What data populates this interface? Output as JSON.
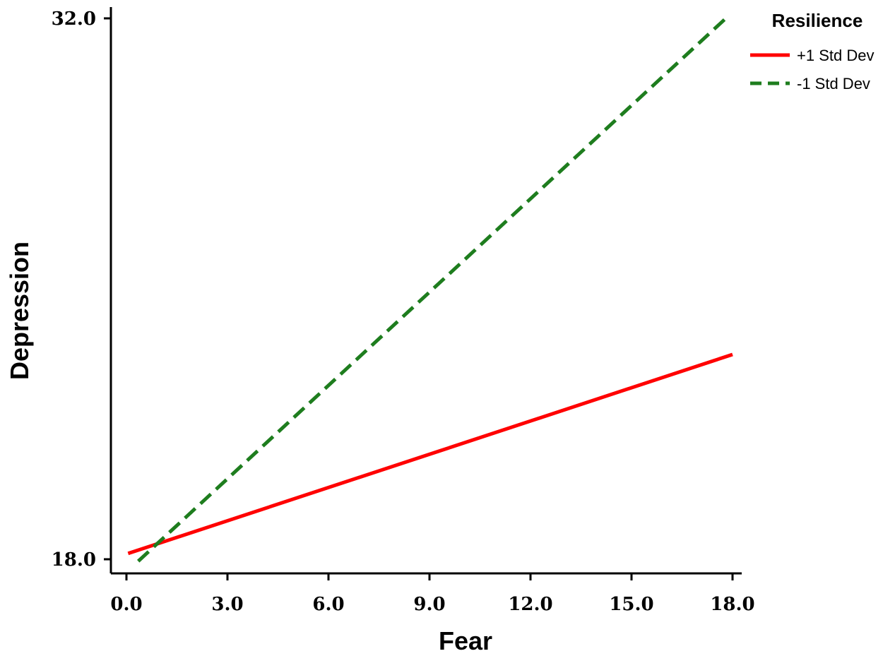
{
  "chart_data": {
    "type": "line",
    "xlabel": "Fear",
    "ylabel": "Depression",
    "xlim": [
      0,
      18
    ],
    "ylim": [
      18,
      32
    ],
    "x_ticks": [
      "0.0",
      "3.0",
      "6.0",
      "9.0",
      "12.0",
      "15.0",
      "18.0"
    ],
    "x_tick_values": [
      0,
      3,
      6,
      9,
      12,
      15,
      18
    ],
    "y_ticks": [
      "18.0",
      "32.0"
    ],
    "y_tick_values": [
      18,
      32
    ],
    "grid": false,
    "legend": {
      "title": "Resilience",
      "placement": "top-right"
    },
    "series": [
      {
        "name": "+1 Std Dev",
        "color": "#ff0000",
        "style": "solid",
        "x": [
          0.05,
          18.0
        ],
        "y": [
          18.15,
          23.3
        ]
      },
      {
        "name": "-1 Std Dev",
        "color": "#1e7d1e",
        "style": "dashed",
        "x": [
          0.35,
          17.8
        ],
        "y": [
          17.95,
          32.0
        ]
      }
    ]
  }
}
